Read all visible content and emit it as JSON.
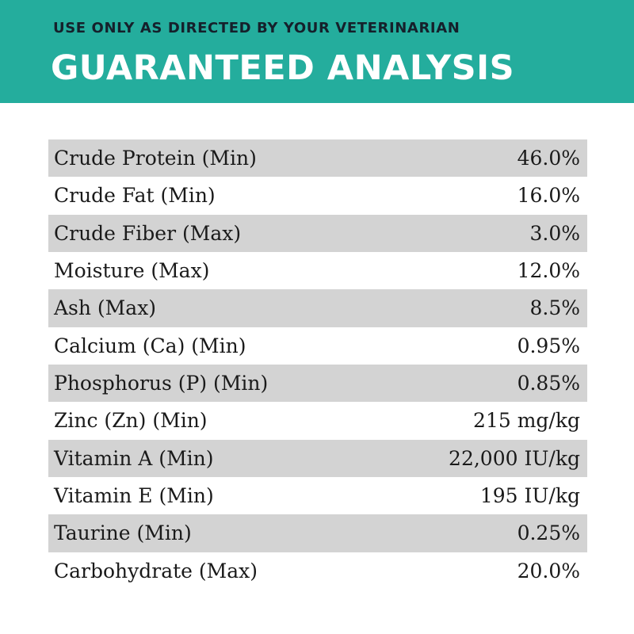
{
  "header": {
    "subtitle": "USE ONLY AS DIRECTED BY YOUR VETERINARIAN",
    "title": "GUARANTEED ANALYSIS",
    "banner_color": "#24ad9d"
  },
  "analysis": {
    "rows": [
      {
        "label": "Crude Protein (Min)",
        "value": "46.0%"
      },
      {
        "label": "Crude Fat (Min)",
        "value": "16.0%"
      },
      {
        "label": "Crude Fiber (Max)",
        "value": "3.0%"
      },
      {
        "label": "Moisture (Max)",
        "value": "12.0%"
      },
      {
        "label": "Ash (Max)",
        "value": "8.5%"
      },
      {
        "label": "Calcium (Ca) (Min)",
        "value": "0.95%"
      },
      {
        "label": "Phosphorus (P) (Min)",
        "value": "0.85%"
      },
      {
        "label": "Zinc (Zn) (Min)",
        "value": "215 mg/kg"
      },
      {
        "label": "Vitamin A (Min)",
        "value": "22,000 IU/kg"
      },
      {
        "label": "Vitamin E (Min)",
        "value": "195 IU/kg"
      },
      {
        "label": "Taurine (Min)",
        "value": "0.25%"
      },
      {
        "label": "Carbohydrate (Max)",
        "value": "20.0%"
      }
    ]
  }
}
